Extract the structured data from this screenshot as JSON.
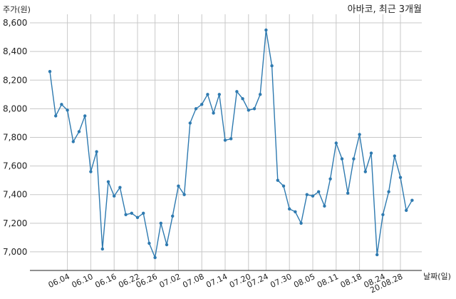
{
  "chart_data": {
    "type": "line",
    "title": "아바코, 최근 3개월",
    "ylabel": "주가(원)",
    "xlabel": "날짜(일)",
    "ylim": [
      6870,
      8660
    ],
    "yticks": [
      7000,
      7200,
      7400,
      7600,
      7800,
      8000,
      8200,
      8400,
      8600
    ],
    "ytick_labels": [
      "7,000",
      "7,200",
      "7,400",
      "7,600",
      "7,800",
      "8,000",
      "8,200",
      "8,400",
      "8,600"
    ],
    "xtick_labels": [
      "06.04",
      "06.10",
      "06.16",
      "06.22",
      "06.26",
      "07.02",
      "07.08",
      "07.14",
      "07.20",
      "07.24",
      "07.30",
      "08.05",
      "08.11",
      "08.18",
      "08.24",
      "20.08.28"
    ],
    "xtick_index": [
      3,
      7,
      11,
      15,
      18,
      22,
      26,
      30,
      34,
      37,
      41,
      45,
      49,
      53,
      57,
      60
    ],
    "grid": true,
    "color": "#2e7ab0",
    "series": [
      {
        "values": [
          8260,
          7950,
          8030,
          7990,
          7770,
          7840,
          7950,
          7560,
          7700,
          7020,
          7490,
          7390,
          7450,
          7260,
          7270,
          7240,
          7270,
          7060,
          6960,
          7200,
          7050,
          7250,
          7460,
          7400,
          7900,
          8000,
          8030,
          8100,
          7970,
          8100,
          7780,
          7790,
          8120,
          8070,
          7990,
          8000,
          8100,
          8550,
          8300,
          7500,
          7460,
          7300,
          7280,
          7200,
          7400,
          7390,
          7420,
          7320,
          7510,
          7760,
          7650,
          7410,
          7650,
          7820,
          7560,
          7690,
          6980,
          7260,
          7420,
          7670,
          7520,
          7290,
          7360
        ]
      }
    ]
  }
}
